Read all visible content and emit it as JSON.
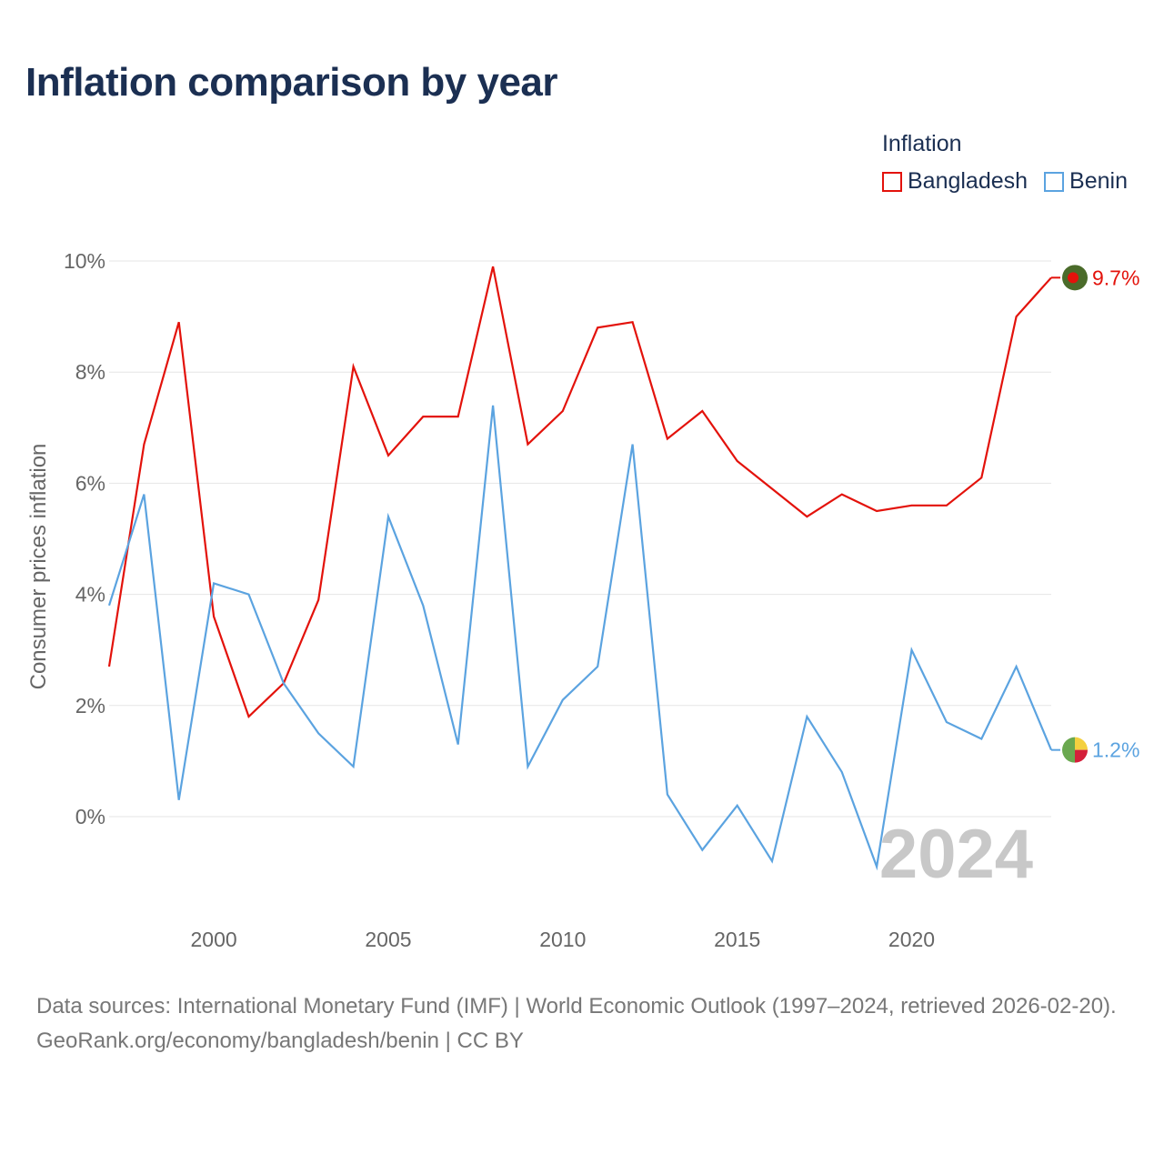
{
  "chart_data": {
    "type": "line",
    "title": "Inflation comparison by year",
    "ylabel": "Consumer prices inflation",
    "xlabel": "",
    "legend_title": "Inflation",
    "legend_position": "top-right",
    "x": [
      1997,
      1998,
      1999,
      2000,
      2001,
      2002,
      2003,
      2004,
      2005,
      2006,
      2007,
      2008,
      2009,
      2010,
      2011,
      2012,
      2013,
      2014,
      2015,
      2016,
      2017,
      2018,
      2019,
      2020,
      2021,
      2022,
      2023,
      2024
    ],
    "xlim": [
      1997,
      2024
    ],
    "ylim": [
      -1.8,
      10
    ],
    "y_ticks": [
      0,
      2,
      4,
      6,
      8,
      10
    ],
    "y_tick_labels": [
      "0%",
      "2%",
      "4%",
      "6%",
      "8%",
      "10%"
    ],
    "x_ticks": [
      2000,
      2005,
      2010,
      2015,
      2020
    ],
    "x_tick_labels": [
      "2000",
      "2005",
      "2010",
      "2015",
      "2020"
    ],
    "year_watermark": "2024",
    "series": [
      {
        "name": "Bangladesh",
        "color": "#e3120b",
        "end_label": "9.7%",
        "values": [
          2.7,
          6.7,
          8.9,
          3.6,
          1.8,
          2.4,
          3.9,
          8.1,
          6.5,
          7.2,
          7.2,
          9.9,
          6.7,
          7.3,
          8.8,
          8.9,
          6.8,
          7.3,
          6.4,
          5.9,
          5.4,
          5.8,
          5.5,
          5.6,
          5.6,
          6.1,
          9.0,
          9.7
        ],
        "flag_colors": [
          "#4a6b2a",
          "#e3120b"
        ]
      },
      {
        "name": "Benin",
        "color": "#5ba3e0",
        "end_label": "1.2%",
        "values": [
          3.8,
          5.8,
          0.3,
          4.2,
          4.0,
          2.4,
          1.5,
          0.9,
          5.4,
          3.8,
          1.3,
          7.4,
          0.9,
          2.1,
          2.7,
          6.7,
          0.4,
          -0.6,
          0.2,
          -0.8,
          1.8,
          0.8,
          -0.9,
          3.0,
          1.7,
          1.4,
          2.7,
          1.2
        ],
        "flag_colors": [
          "#6aa84f",
          "#f4d03f",
          "#d41f3a"
        ]
      }
    ]
  },
  "footer": {
    "sources": "Data sources: International Monetary Fund (IMF) | World Economic Outlook (1997–2024, retrieved 2026-02-20).",
    "attribution": "GeoRank.org/economy/bangladesh/benin | CC BY"
  }
}
